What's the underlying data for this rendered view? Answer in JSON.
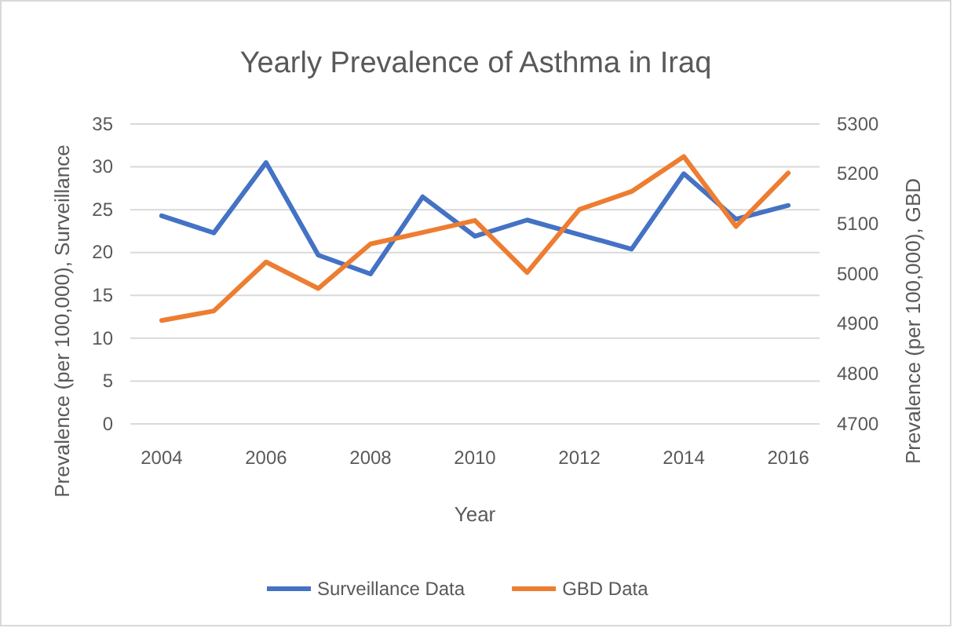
{
  "chart_data": {
    "type": "line",
    "title": "Yearly Prevalence of Asthma in Iraq",
    "xlabel": "Year",
    "ylabel": "Prevalence (per 100,000), Surveillance",
    "y2label": "Prevalence (per 100,000), GBD",
    "x": [
      2004,
      2005,
      2006,
      2007,
      2008,
      2009,
      2010,
      2011,
      2012,
      2013,
      2014,
      2015,
      2016
    ],
    "xlim": [
      2003.4,
      2016.6
    ],
    "xticks": [
      2004,
      2006,
      2008,
      2010,
      2012,
      2014,
      2016
    ],
    "ylim": [
      0,
      35
    ],
    "yticks": [
      0,
      5,
      10,
      15,
      20,
      25,
      30,
      35
    ],
    "y2lim": [
      4700,
      5300
    ],
    "y2ticks": [
      4700,
      4800,
      4900,
      5000,
      5100,
      5200,
      5300
    ],
    "series": [
      {
        "name": "Surveillance Data",
        "color": "#4472c4",
        "values": [
          24.3,
          22.3,
          30.5,
          19.7,
          17.5,
          26.5,
          21.9,
          23.8,
          22.1,
          20.4,
          29.2,
          23.9,
          25.5
        ]
      },
      {
        "name": "GBD Data",
        "color": "#ed7d31",
        "axis": "y2",
        "values": [
          4907,
          4926,
          5024,
          4971,
          5060,
          5083,
          5107,
          5003,
          5129,
          5165,
          5235,
          5095,
          5202
        ]
      }
    ],
    "grid": "y",
    "legend": "bottom",
    "marker": "none",
    "line_style": "solid"
  }
}
